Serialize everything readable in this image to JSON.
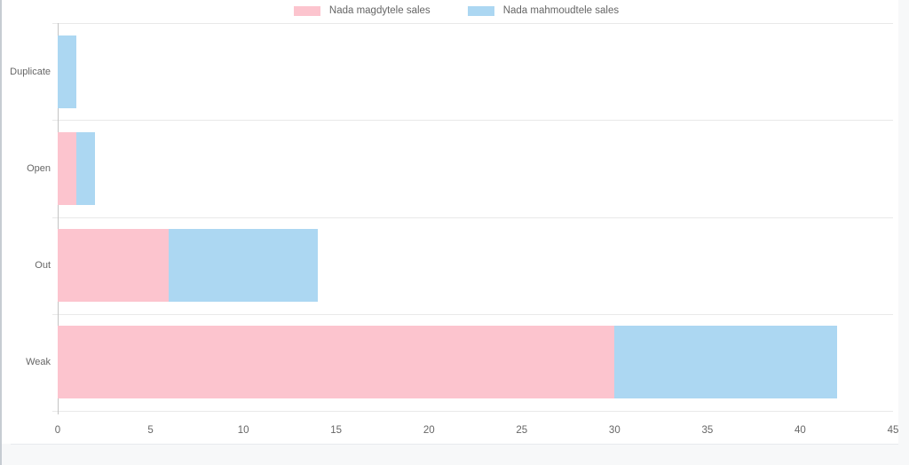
{
  "chart_data": {
    "type": "bar",
    "orientation": "horizontal",
    "stacked": true,
    "title": "",
    "xlabel": "",
    "ylabel": "",
    "categories": [
      "Duplicate",
      "Open",
      "Out",
      "Weak"
    ],
    "series": [
      {
        "name": "Nada magdytele sales",
        "color": "#fcc4ce",
        "values": [
          0,
          1,
          6,
          30
        ]
      },
      {
        "name": "Nada mahmoudtele sales",
        "color": "#acd7f2",
        "values": [
          1,
          1,
          8,
          12
        ]
      }
    ],
    "totals": [
      1,
      2,
      14,
      42
    ],
    "xlim": [
      0,
      45
    ],
    "x_ticks": [
      0,
      5,
      10,
      15,
      20,
      25,
      30,
      35,
      40,
      45
    ],
    "legend_position": "top",
    "grid": "horizontal-row-boundaries-only",
    "text_color": "#666666",
    "gridline_color": "#e9e9e9",
    "axis_line_color": "#c3c3c3",
    "background_color": "#ffffff"
  }
}
